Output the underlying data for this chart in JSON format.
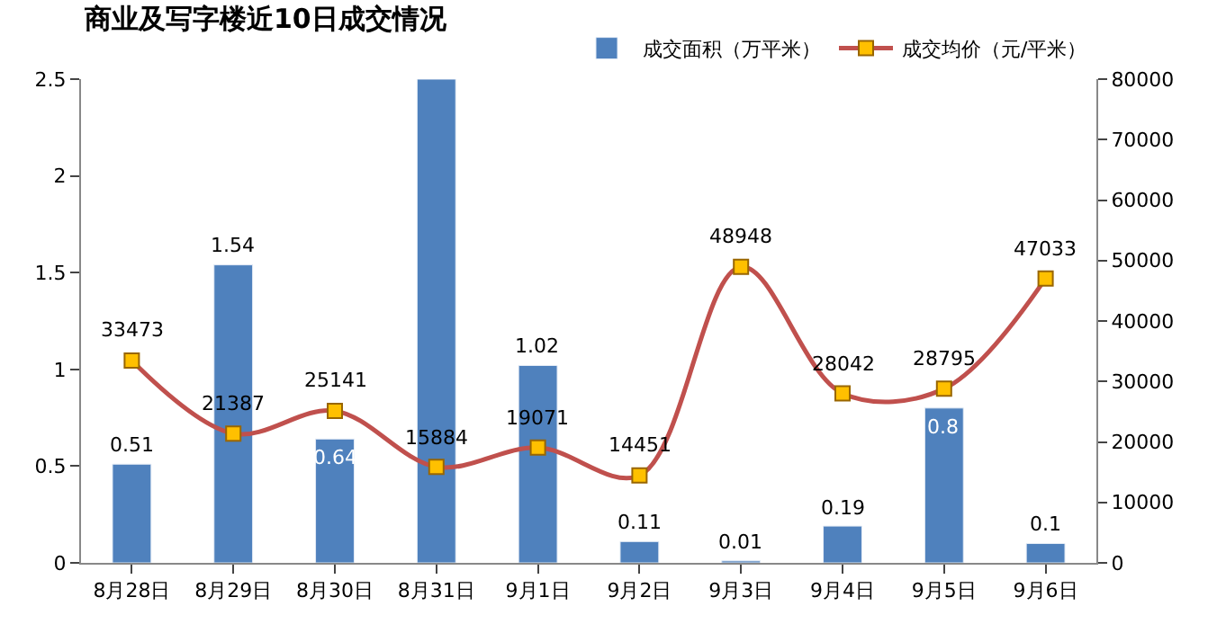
{
  "chart_data": {
    "type": "bar",
    "title": "商业及写字楼近10日成交情况",
    "categories": [
      "8月28日",
      "8月29日",
      "8月30日",
      "8月31日",
      "9月1日",
      "9月2日",
      "9月3日",
      "9月4日",
      "9月5日",
      "9月6日"
    ],
    "series": [
      {
        "name": "成交面积（万平米）",
        "color": "#4f81bd",
        "values": [
          0.51,
          1.54,
          0.64,
          2.5,
          1.02,
          0.11,
          0.01,
          0.19,
          0.8,
          0.1
        ],
        "value_labels": [
          "0.51",
          "1.54",
          "0.64",
          null,
          "1.02",
          "0.11",
          "0.01",
          "0.19",
          "0.8",
          "0.1"
        ]
      },
      {
        "name": "成交均价（元/平米）",
        "type": "line",
        "axis": "y2",
        "color": "#c0504d",
        "marker": "square",
        "values": [
          33473,
          21387,
          25141,
          15884,
          19071,
          14451,
          48948,
          28042,
          28795,
          47033
        ],
        "value_labels": [
          "33473",
          "21387",
          "25141",
          "15884",
          "19071",
          "14451",
          "48948",
          "28042",
          "28795",
          "47033"
        ]
      }
    ],
    "ylim": [
      0,
      2.5
    ],
    "yticks": [
      0,
      {
        "value": 0.5,
        "label": "0.5"
      },
      1,
      {
        "value": 1.5,
        "label": "1.5"
      },
      2,
      {
        "value": 2.5,
        "label": "2.5"
      }
    ],
    "y2lim": [
      0,
      80000
    ],
    "y2ticks": [
      0,
      10000,
      20000,
      30000,
      40000,
      50000,
      60000,
      70000,
      80000
    ],
    "legend": "top right"
  }
}
